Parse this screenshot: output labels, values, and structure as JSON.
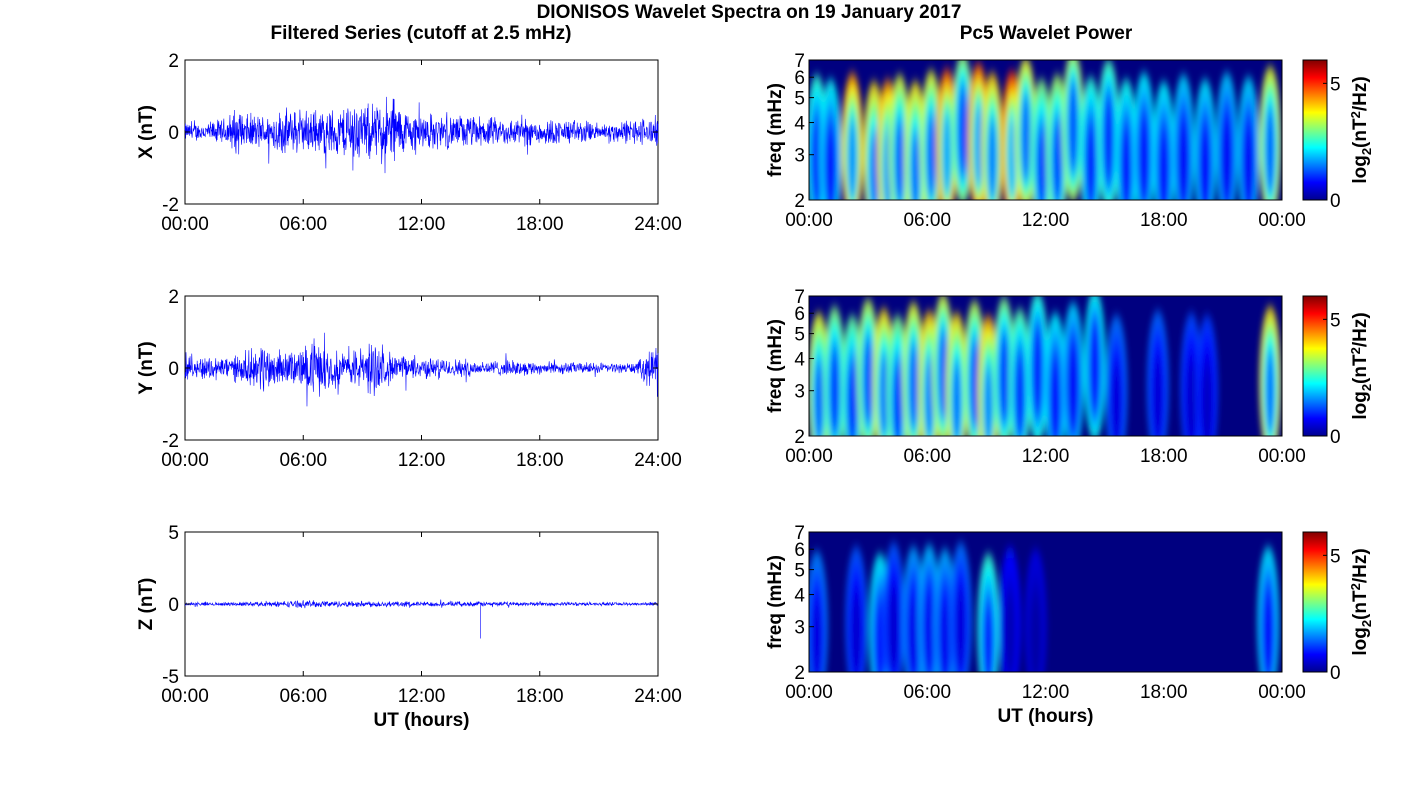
{
  "figure": {
    "title": "DIONISOS Wavelet Spectra on 19 January 2017",
    "left_title": "Filtered Series (cutoff at 2.5 mHz)",
    "right_title": "Pc5 Wavelet Power"
  },
  "colors": {
    "trace": "#0000ff",
    "colormap": "jet",
    "background": "#000080",
    "axis": "#000000"
  },
  "chart_data": [
    {
      "type": "line",
      "id": "x_series",
      "title": "",
      "xlabel": "",
      "ylabel": "X (nT)",
      "xlim": [
        0,
        24
      ],
      "ylim": [
        -2,
        2
      ],
      "x_ticks": [
        "00:00",
        "06:00",
        "12:00",
        "18:00",
        "24:00"
      ],
      "y_ticks": [
        "-2",
        "0",
        "2"
      ],
      "series": [
        {
          "x": [
            0,
            1,
            2,
            2.5,
            3,
            4,
            5,
            6,
            7,
            8,
            8.5,
            9,
            10,
            10.5,
            11,
            12,
            13,
            14,
            15,
            16,
            17,
            18,
            19,
            20,
            21,
            22,
            23,
            24
          ],
          "envelope": [
            0.3,
            0.3,
            0.45,
            0.75,
            0.6,
            0.55,
            0.75,
            0.7,
            0.75,
            0.8,
            1.3,
            0.85,
            1.0,
            1.4,
            0.75,
            0.65,
            0.55,
            0.55,
            0.5,
            0.45,
            0.45,
            0.45,
            0.4,
            0.4,
            0.3,
            0.35,
            0.45,
            0.5
          ]
        }
      ]
    },
    {
      "type": "line",
      "id": "y_series",
      "title": "",
      "xlabel": "",
      "ylabel": "Y (nT)",
      "xlim": [
        0,
        24
      ],
      "ylim": [
        -2,
        2
      ],
      "x_ticks": [
        "00:00",
        "06:00",
        "12:00",
        "18:00",
        "24:00"
      ],
      "y_ticks": [
        "-2",
        "0",
        "2"
      ],
      "series": [
        {
          "x": [
            0,
            1,
            2,
            3,
            4,
            5,
            6,
            6.5,
            7,
            8,
            9,
            9.5,
            10,
            11,
            12,
            13,
            14,
            15,
            16,
            17,
            18,
            19,
            20,
            21,
            22,
            23,
            23.5,
            24
          ],
          "envelope": [
            0.35,
            0.4,
            0.4,
            0.45,
            0.85,
            0.5,
            0.65,
            1.0,
            0.75,
            0.55,
            0.7,
            1.0,
            0.6,
            0.4,
            0.35,
            0.3,
            0.3,
            0.25,
            0.25,
            0.25,
            0.2,
            0.2,
            0.18,
            0.18,
            0.15,
            0.2,
            0.6,
            0.85
          ]
        }
      ]
    },
    {
      "type": "line",
      "id": "z_series",
      "title": "",
      "xlabel": "UT (hours)",
      "ylabel": "Z (nT)",
      "xlim": [
        0,
        24
      ],
      "ylim": [
        -5,
        5
      ],
      "x_ticks": [
        "00:00",
        "06:00",
        "12:00",
        "18:00",
        "24:00"
      ],
      "y_ticks": [
        "-5",
        "0",
        "5"
      ],
      "series": [
        {
          "x": [
            0,
            2,
            4,
            6,
            8,
            10,
            12,
            14,
            15,
            16,
            18,
            20,
            22,
            24
          ],
          "envelope": [
            0.15,
            0.15,
            0.2,
            0.3,
            0.25,
            0.25,
            0.2,
            0.2,
            0.2,
            0.18,
            0.15,
            0.15,
            0.12,
            0.15
          ],
          "spike": {
            "x": 15.0,
            "y": -2.4
          }
        }
      ]
    },
    {
      "type": "heatmap",
      "id": "x_wavelet",
      "title": "",
      "xlabel": "",
      "ylabel": "freq (mHz)",
      "colorbar_label": "log2(nT^2/Hz)",
      "colorbar_ticks": [
        "0",
        "5"
      ],
      "clim": [
        0,
        6
      ],
      "xlim": [
        0,
        24
      ],
      "ylim_mHz": [
        2,
        7
      ],
      "y_scale": "log",
      "x_ticks": [
        "00:00",
        "06:00",
        "12:00",
        "18:00",
        "00:00"
      ],
      "y_ticks": [
        "2",
        "3",
        "4",
        "5",
        "6",
        "7"
      ],
      "power_peaks": [
        {
          "t": 0.4,
          "f": 2.6,
          "p": 3.0
        },
        {
          "t": 1.1,
          "f": 2.4,
          "p": 2.7
        },
        {
          "t": 2.2,
          "f": 2.7,
          "p": 5.2
        },
        {
          "t": 3.3,
          "f": 2.3,
          "p": 4.6
        },
        {
          "t": 4.0,
          "f": 2.4,
          "p": 5.2
        },
        {
          "t": 4.6,
          "f": 2.6,
          "p": 4.2
        },
        {
          "t": 5.4,
          "f": 2.3,
          "p": 4.5
        },
        {
          "t": 6.2,
          "f": 2.8,
          "p": 4.3
        },
        {
          "t": 7.0,
          "f": 2.9,
          "p": 5.6
        },
        {
          "t": 7.8,
          "f": 3.8,
          "p": 3.8
        },
        {
          "t": 8.6,
          "f": 3.2,
          "p": 5.6
        },
        {
          "t": 9.3,
          "f": 2.7,
          "p": 4.8
        },
        {
          "t": 10.3,
          "f": 2.8,
          "p": 5.9
        },
        {
          "t": 11.0,
          "f": 3.5,
          "p": 4.4
        },
        {
          "t": 11.8,
          "f": 2.4,
          "p": 3.6
        },
        {
          "t": 12.6,
          "f": 2.6,
          "p": 3.8
        },
        {
          "t": 13.4,
          "f": 4.0,
          "p": 4.0
        },
        {
          "t": 14.3,
          "f": 2.5,
          "p": 3.0
        },
        {
          "t": 15.2,
          "f": 3.4,
          "p": 3.2
        },
        {
          "t": 16.1,
          "f": 2.4,
          "p": 2.8
        },
        {
          "t": 17.0,
          "f": 2.7,
          "p": 2.6
        },
        {
          "t": 18.0,
          "f": 2.3,
          "p": 2.6
        },
        {
          "t": 19.0,
          "f": 2.6,
          "p": 2.4
        },
        {
          "t": 20.1,
          "f": 2.4,
          "p": 2.5
        },
        {
          "t": 21.2,
          "f": 2.7,
          "p": 2.3
        },
        {
          "t": 22.3,
          "f": 2.5,
          "p": 2.4
        },
        {
          "t": 23.4,
          "f": 3.0,
          "p": 4.3
        }
      ]
    },
    {
      "type": "heatmap",
      "id": "y_wavelet",
      "title": "",
      "xlabel": "",
      "ylabel": "freq (mHz)",
      "colorbar_label": "log2(nT^2/Hz)",
      "colorbar_ticks": [
        "0",
        "5"
      ],
      "clim": [
        0,
        6
      ],
      "xlim": [
        0,
        24
      ],
      "ylim_mHz": [
        2,
        7
      ],
      "y_scale": "log",
      "x_ticks": [
        "00:00",
        "06:00",
        "12:00",
        "18:00",
        "00:00"
      ],
      "y_ticks": [
        "2",
        "3",
        "4",
        "5",
        "6",
        "7"
      ],
      "power_peaks": [
        {
          "t": 0.5,
          "f": 2.5,
          "p": 4.3
        },
        {
          "t": 1.3,
          "f": 2.8,
          "p": 3.6
        },
        {
          "t": 2.2,
          "f": 2.4,
          "p": 3.4
        },
        {
          "t": 3.0,
          "f": 3.2,
          "p": 4.0
        },
        {
          "t": 3.8,
          "f": 2.7,
          "p": 4.6
        },
        {
          "t": 4.5,
          "f": 2.4,
          "p": 3.6
        },
        {
          "t": 5.3,
          "f": 3.0,
          "p": 4.3
        },
        {
          "t": 6.1,
          "f": 2.6,
          "p": 4.8
        },
        {
          "t": 6.8,
          "f": 3.5,
          "p": 4.2
        },
        {
          "t": 7.5,
          "f": 2.5,
          "p": 4.6
        },
        {
          "t": 8.4,
          "f": 3.1,
          "p": 4.0
        },
        {
          "t": 9.1,
          "f": 2.4,
          "p": 5.0
        },
        {
          "t": 9.9,
          "f": 3.3,
          "p": 3.6
        },
        {
          "t": 10.7,
          "f": 2.7,
          "p": 3.3
        },
        {
          "t": 11.6,
          "f": 3.6,
          "p": 3.0
        },
        {
          "t": 12.5,
          "f": 2.5,
          "p": 2.6
        },
        {
          "t": 13.4,
          "f": 3.0,
          "p": 2.4
        },
        {
          "t": 14.5,
          "f": 3.8,
          "p": 2.8
        },
        {
          "t": 15.6,
          "f": 2.4,
          "p": 1.7
        },
        {
          "t": 17.7,
          "f": 2.6,
          "p": 1.6
        },
        {
          "t": 19.4,
          "f": 2.5,
          "p": 1.4
        },
        {
          "t": 20.2,
          "f": 2.4,
          "p": 1.3
        },
        {
          "t": 23.4,
          "f": 2.8,
          "p": 4.6
        }
      ]
    },
    {
      "type": "heatmap",
      "id": "z_wavelet",
      "title": "",
      "xlabel": "UT (hours)",
      "ylabel": "freq (mHz)",
      "colorbar_label": "log2(nT^2/Hz)",
      "colorbar_ticks": [
        "0",
        "5"
      ],
      "clim": [
        0,
        6
      ],
      "xlim": [
        0,
        24
      ],
      "ylim_mHz": [
        2,
        7
      ],
      "y_scale": "log",
      "x_ticks": [
        "00:00",
        "06:00",
        "12:00",
        "18:00",
        "00:00"
      ],
      "y_ticks": [
        "2",
        "3",
        "4",
        "5",
        "6",
        "7"
      ],
      "power_peaks": [
        {
          "t": 0.4,
          "f": 2.4,
          "p": 1.8
        },
        {
          "t": 2.4,
          "f": 2.6,
          "p": 1.5
        },
        {
          "t": 3.6,
          "f": 2.3,
          "p": 2.6
        },
        {
          "t": 4.3,
          "f": 2.8,
          "p": 1.5
        },
        {
          "t": 5.3,
          "f": 2.6,
          "p": 2.0
        },
        {
          "t": 6.1,
          "f": 2.7,
          "p": 2.2
        },
        {
          "t": 6.9,
          "f": 2.5,
          "p": 2.1
        },
        {
          "t": 7.7,
          "f": 2.8,
          "p": 1.7
        },
        {
          "t": 9.1,
          "f": 2.3,
          "p": 3.0
        },
        {
          "t": 10.2,
          "f": 2.6,
          "p": 1.0
        },
        {
          "t": 11.5,
          "f": 2.5,
          "p": 0.7
        },
        {
          "t": 23.3,
          "f": 2.6,
          "p": 2.5
        }
      ]
    }
  ]
}
